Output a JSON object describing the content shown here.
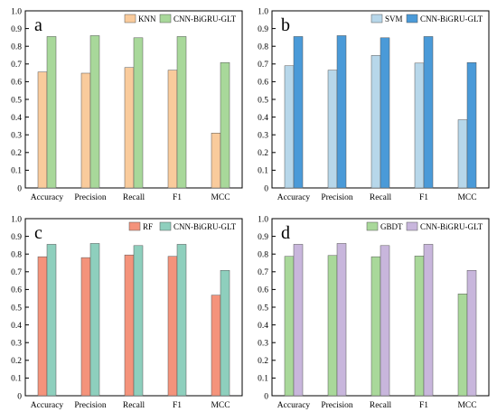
{
  "chart_data": [
    {
      "type": "bar",
      "panel_label": "a",
      "categories": [
        "Accuracy",
        "Precision",
        "Recall",
        "F1",
        "MCC"
      ],
      "ylim": [
        0,
        1.0
      ],
      "yticks": [
        "0",
        "0.1",
        "0.2",
        "0.3",
        "0.4",
        "0.5",
        "0.6",
        "0.7",
        "0.8",
        "0.9",
        "1.0"
      ],
      "legend_position": "top-right",
      "grid": false,
      "series": [
        {
          "name": "KNN",
          "color": "#f9cb9c",
          "values": [
            0.655,
            0.648,
            0.68,
            0.665,
            0.31
          ]
        },
        {
          "name": "CNN-BiGRU-GLT",
          "color": "#a8d89a",
          "values": [
            0.855,
            0.86,
            0.848,
            0.855,
            0.708
          ]
        }
      ]
    },
    {
      "type": "bar",
      "panel_label": "b",
      "categories": [
        "Accuracy",
        "Precision",
        "Recall",
        "F1",
        "MCC"
      ],
      "ylim": [
        0,
        1.0
      ],
      "yticks": [
        "0",
        "0.1",
        "0.2",
        "0.3",
        "0.4",
        "0.5",
        "0.6",
        "0.7",
        "0.8",
        "0.9",
        "1.0"
      ],
      "legend_position": "top-right",
      "grid": false,
      "series": [
        {
          "name": "SVM",
          "color": "#b7d7ea",
          "values": [
            0.69,
            0.665,
            0.748,
            0.705,
            0.385
          ]
        },
        {
          "name": "CNN-BiGRU-GLT",
          "color": "#4a9ad8",
          "values": [
            0.855,
            0.86,
            0.848,
            0.855,
            0.708
          ]
        }
      ]
    },
    {
      "type": "bar",
      "panel_label": "c",
      "categories": [
        "Accuracy",
        "Precision",
        "Recall",
        "F1",
        "MCC"
      ],
      "ylim": [
        0,
        1.0
      ],
      "yticks": [
        "0",
        "0.1",
        "0.2",
        "0.3",
        "0.4",
        "0.5",
        "0.6",
        "0.7",
        "0.8",
        "0.9",
        "1.0"
      ],
      "legend_position": "top-right",
      "grid": false,
      "series": [
        {
          "name": "RF",
          "color": "#f4937b",
          "values": [
            0.785,
            0.78,
            0.795,
            0.787,
            0.568
          ]
        },
        {
          "name": "CNN-BiGRU-GLT",
          "color": "#8ecfbd",
          "values": [
            0.855,
            0.86,
            0.848,
            0.855,
            0.708
          ]
        }
      ]
    },
    {
      "type": "bar",
      "panel_label": "d",
      "categories": [
        "Accuracy",
        "Precision",
        "Recall",
        "F1",
        "MCC"
      ],
      "ylim": [
        0,
        1.0
      ],
      "yticks": [
        "0",
        "0.1",
        "0.2",
        "0.3",
        "0.4",
        "0.5",
        "0.6",
        "0.7",
        "0.8",
        "0.9",
        "1.0"
      ],
      "legend_position": "top-right",
      "grid": false,
      "series": [
        {
          "name": "GBDT",
          "color": "#a9d89a",
          "values": [
            0.787,
            0.792,
            0.785,
            0.789,
            0.575
          ]
        },
        {
          "name": "CNN-BiGRU-GLT",
          "color": "#c8b6dc",
          "values": [
            0.855,
            0.86,
            0.848,
            0.855,
            0.708
          ]
        }
      ]
    }
  ]
}
